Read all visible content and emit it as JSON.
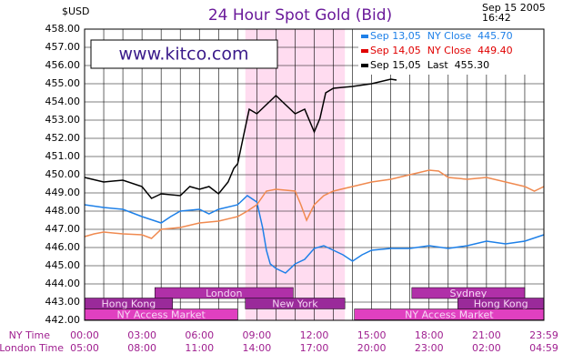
{
  "chart_data": {
    "type": "line",
    "title": "24 Hour Spot Gold (Bid)",
    "y_label": "$USD",
    "timestamp": [
      "Sep 15 2005",
      "16:42"
    ],
    "watermark": "www.kitco.com",
    "xlim": [
      0,
      24
    ],
    "ylim": [
      442,
      458
    ],
    "grid": true,
    "xgrid": [
      0,
      1,
      2,
      3,
      4,
      5,
      6,
      7,
      8,
      9,
      10,
      11,
      12,
      13,
      14,
      15,
      16,
      17,
      18,
      19,
      20,
      21,
      22,
      23,
      24
    ],
    "yticks": [
      {
        "value": 442,
        "label": "442.00"
      },
      {
        "value": 443,
        "label": "443.00"
      },
      {
        "value": 444,
        "label": "444.00"
      },
      {
        "value": 445,
        "label": "445.00"
      },
      {
        "value": 446,
        "label": "446.00"
      },
      {
        "value": 447,
        "label": "447.00"
      },
      {
        "value": 448,
        "label": "448.00"
      },
      {
        "value": 449,
        "label": "449.00"
      },
      {
        "value": 450,
        "label": "450.00"
      },
      {
        "value": 451,
        "label": "451.00"
      },
      {
        "value": 452,
        "label": "452.00"
      },
      {
        "value": 453,
        "label": "453.00"
      },
      {
        "value": 454,
        "label": "454.00"
      },
      {
        "value": 455,
        "label": "455.00"
      },
      {
        "value": 456,
        "label": "456.00"
      },
      {
        "value": 457,
        "label": "457.00"
      },
      {
        "value": 458,
        "label": "458.00"
      }
    ],
    "x_row_labels": [
      "NY Time",
      "London Time"
    ],
    "xticks": [
      {
        "value": 0,
        "label": "00:00"
      },
      {
        "value": 3,
        "label": "03:00"
      },
      {
        "value": 6,
        "label": "06:00"
      },
      {
        "value": 9,
        "label": "09:00"
      },
      {
        "value": 12,
        "label": "12:00"
      },
      {
        "value": 15,
        "label": "15:00"
      },
      {
        "value": 18,
        "label": "18:00"
      },
      {
        "value": 21,
        "label": "21:00"
      },
      {
        "value": 24,
        "label": "23:59"
      }
    ],
    "xticks_london": [
      {
        "value": 0,
        "label": "05:00"
      },
      {
        "value": 3,
        "label": "08:00"
      },
      {
        "value": 6,
        "label": "11:00"
      },
      {
        "value": 9,
        "label": "14:00"
      },
      {
        "value": 12,
        "label": "17:00"
      },
      {
        "value": 15,
        "label": "20:00"
      },
      {
        "value": 18,
        "label": "23:00"
      },
      {
        "value": 21,
        "label": "02:00"
      },
      {
        "value": 24,
        "label": "04:59"
      }
    ],
    "sessions": [
      [
        {
          "name": "London",
          "start": 3.67,
          "end": 10.9,
          "color": "#b030a8"
        },
        {
          "name": "Sydney",
          "start": 17.1,
          "end": 23,
          "color": "#b030a8"
        }
      ],
      [
        {
          "name": "Hong Kong",
          "start": 0,
          "end": 4.6,
          "color": "#9a2a9a"
        },
        {
          "name": "New York",
          "start": 8.4,
          "end": 13.6,
          "color": "#9a2a9a",
          "highlight": true
        },
        {
          "name": "Hong Kong",
          "start": 19.5,
          "end": 24,
          "color": "#9a2a9a"
        }
      ],
      [
        {
          "name": "NY Access Market",
          "start": 0,
          "end": 8,
          "color": "#e040c0"
        },
        {
          "name": "NY Access Market",
          "start": 14.1,
          "end": 24,
          "color": "#e040c0"
        }
      ]
    ],
    "series": [
      {
        "name": "Sep 13,05  NY Close  445.70",
        "color": "#1e80e8",
        "label_color": "#1e80e8",
        "x": [
          0,
          1,
          2,
          3,
          4,
          4.5,
          5,
          6,
          6.5,
          7,
          8,
          8.5,
          9,
          9.3,
          9.5,
          9.7,
          10,
          10.5,
          11,
          11.5,
          12,
          12.5,
          13,
          13.5,
          14,
          14.5,
          15,
          16,
          17,
          18,
          19,
          20,
          21,
          22,
          23,
          24
        ],
        "values": [
          448.35,
          448.2,
          448.1,
          447.7,
          447.35,
          447.7,
          448.0,
          448.1,
          447.85,
          448.1,
          448.35,
          448.85,
          448.5,
          447.1,
          445.85,
          445.1,
          444.85,
          444.6,
          445.1,
          445.35,
          445.95,
          446.1,
          445.85,
          445.6,
          445.25,
          445.6,
          445.85,
          445.95,
          445.95,
          446.1,
          445.95,
          446.1,
          446.35,
          446.2,
          446.35,
          446.7
        ]
      },
      {
        "name": "Sep 14,05  NY Close  449.40",
        "color": "#f08a50",
        "label_color": "#e00000",
        "x": [
          0,
          0.5,
          1,
          2,
          3,
          3.5,
          4,
          5,
          6,
          7,
          8,
          8.5,
          9,
          9.5,
          10,
          11,
          11.3,
          11.6,
          12,
          12.5,
          13,
          14,
          15,
          16,
          17,
          18,
          18.5,
          19,
          20,
          21,
          22,
          23,
          23.5,
          24
        ],
        "values": [
          446.6,
          446.75,
          446.85,
          446.75,
          446.7,
          446.5,
          447.0,
          447.1,
          447.35,
          447.45,
          447.7,
          448.0,
          448.35,
          449.1,
          449.2,
          449.1,
          448.35,
          447.5,
          448.35,
          448.85,
          449.1,
          449.35,
          449.6,
          449.75,
          450.0,
          450.25,
          450.2,
          449.85,
          449.75,
          449.85,
          449.6,
          449.35,
          449.1,
          449.35
        ]
      },
      {
        "name": "Sep 15,05  Last  455.30",
        "color": "#000000",
        "label_color": "#000000",
        "x": [
          0,
          1,
          2,
          3,
          3.5,
          4,
          5,
          5.5,
          6,
          6.5,
          7,
          7.5,
          7.8,
          8,
          8.3,
          8.6,
          9,
          9.5,
          10,
          10.5,
          11,
          11.5,
          12,
          12.3,
          12.6,
          13,
          14,
          15,
          16,
          16.3
        ],
        "values": [
          449.85,
          449.6,
          449.7,
          449.35,
          448.7,
          448.95,
          448.85,
          449.35,
          449.2,
          449.35,
          448.95,
          449.6,
          450.35,
          450.6,
          452.1,
          453.6,
          453.35,
          453.85,
          454.35,
          453.85,
          453.35,
          453.6,
          452.35,
          453.1,
          454.5,
          454.75,
          454.85,
          455.0,
          455.25,
          455.2
        ]
      }
    ]
  }
}
